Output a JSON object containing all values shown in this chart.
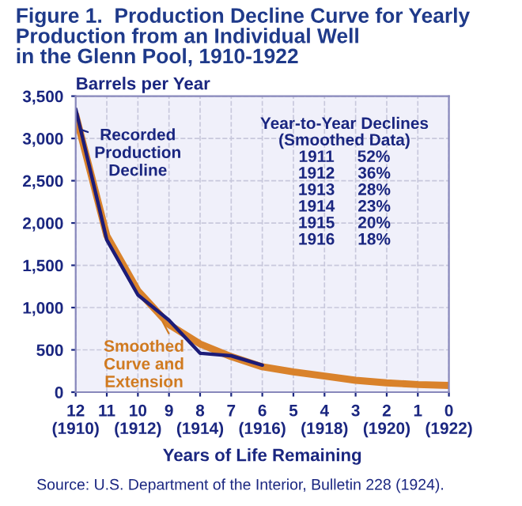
{
  "chart_data": {
    "type": "line",
    "title": "Figure 1.  Production Decline Curve for Yearly\nProduction from an Individual Well\nin the Glenn Pool, 1910-1922",
    "ylabel": "Barrels per Year",
    "xlabel": "Years of Life Remaining",
    "series": [
      {
        "color": "#d9822b",
        "x": [
          12,
          11,
          10,
          9,
          8,
          7,
          6,
          5,
          4,
          3,
          2,
          1,
          0
        ],
        "values": [
          3280,
          1850,
          1200,
          800,
          570,
          420,
          300,
          240,
          190,
          140,
          110,
          90,
          80
        ]
      },
      {
        "color": "#1c1c78",
        "x": [
          12,
          11,
          10,
          9,
          8,
          7,
          6
        ],
        "values": [
          3350,
          1800,
          1150,
          850,
          460,
          430,
          320
        ]
      }
    ],
    "xlim": [
      12,
      0
    ],
    "xticks": [
      {
        "value": 12,
        "label": "12\n(1910)"
      },
      11,
      {
        "value": 10,
        "label": "10\n(1912)"
      },
      9,
      {
        "value": 8,
        "label": "8\n(1914)"
      },
      7,
      {
        "value": 6,
        "label": "6\n(1916)"
      },
      5,
      {
        "value": 4,
        "label": "4\n(1918)"
      },
      3,
      {
        "value": 2,
        "label": "2\n(1920)"
      },
      1,
      {
        "value": 0,
        "label": "0\n(1922)"
      }
    ],
    "ylim": [
      0,
      3500
    ],
    "yticks": [
      {
        "value": 0,
        "label": "0"
      },
      {
        "value": 500,
        "label": "500"
      },
      {
        "value": 1000,
        "label": "1,000"
      },
      {
        "value": 1500,
        "label": "1,500"
      },
      {
        "value": 2000,
        "label": "2,000"
      },
      {
        "value": 2500,
        "label": "2,500"
      },
      {
        "value": 3000,
        "label": "3,000"
      },
      {
        "value": 3500,
        "label": "3,500"
      }
    ],
    "grid": true,
    "annotations": [
      {
        "text": "Recorded\nProduction\nDecline",
        "x": 11.8,
        "y": 3100
      },
      {
        "text": "Smoothed\nCurve and\nExtension",
        "x": 9.2,
        "y": 830
      },
      "Year-to-Year Declines\n(Smoothed Data)\n1911     52%\n1912     36%\n1913     28%\n1914     23%\n1915     20%\n1916     18%",
      "Source: U.S. Department of the Interior, Bulletin 228 (1924)."
    ]
  }
}
